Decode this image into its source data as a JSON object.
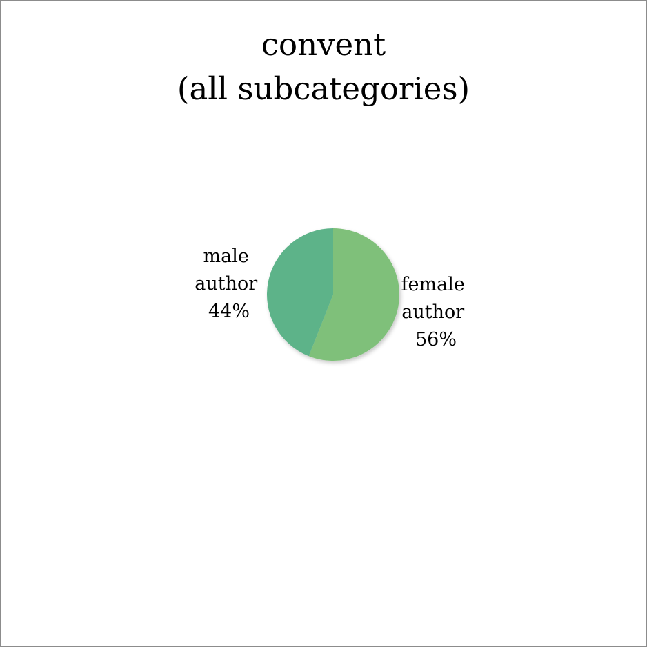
{
  "chart_data": {
    "type": "pie",
    "title_lines": [
      "convent",
      "(all subcategories)"
    ],
    "slices": [
      {
        "label_lines": [
          "female",
          "author"
        ],
        "value_label": "56%",
        "value": 56,
        "color": "#7fc07a"
      },
      {
        "label_lines": [
          "male",
          "author"
        ],
        "value_label": "44%",
        "value": 44,
        "color": "#5db389"
      }
    ],
    "start_angle_deg": 0,
    "direction": "clockwise",
    "legend": "none"
  }
}
